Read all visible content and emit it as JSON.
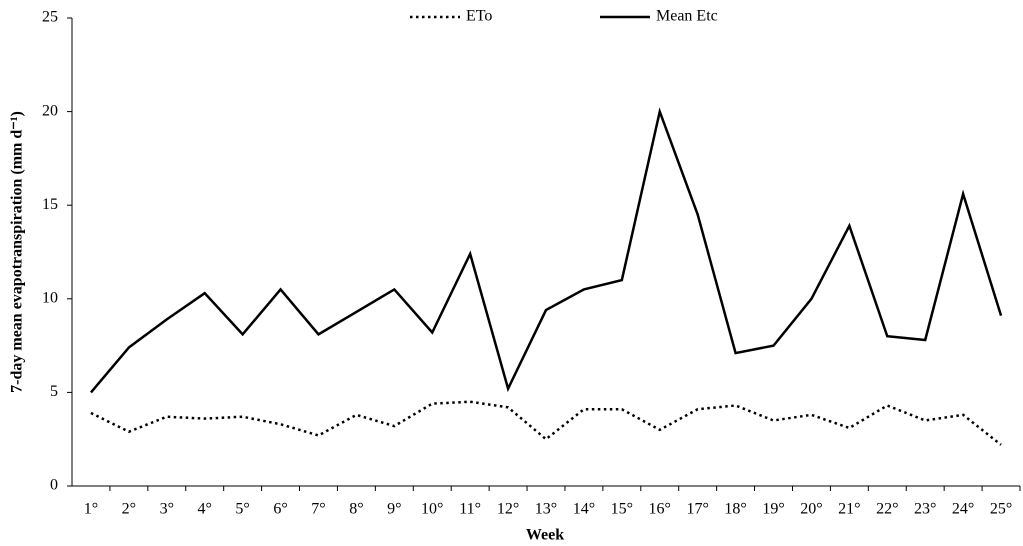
{
  "chart_data": {
    "type": "line",
    "x_label": "Week",
    "y_label": "7-day mean evapotranspiration (mm d⁻¹)",
    "categories": [
      "1°",
      "2°",
      "3°",
      "4°",
      "5°",
      "6°",
      "7°",
      "8°",
      "9°",
      "10°",
      "11°",
      "12°",
      "13°",
      "14°",
      "15°",
      "16°",
      "17°",
      "18°",
      "19°",
      "20°",
      "21°",
      "22°",
      "23°",
      "24°",
      "25°"
    ],
    "series": [
      {
        "name": "ETo",
        "color": "#000000",
        "dash": "dotted",
        "values": [
          3.9,
          2.9,
          3.7,
          3.6,
          3.7,
          3.3,
          2.7,
          3.8,
          3.2,
          4.4,
          4.5,
          4.2,
          2.5,
          4.1,
          4.1,
          3.0,
          4.1,
          4.3,
          3.5,
          3.8,
          3.1,
          4.3,
          3.5,
          3.8,
          2.2
        ]
      },
      {
        "name": "Mean Etc",
        "color": "#000000",
        "dash": "solid",
        "values": [
          5.0,
          7.4,
          8.9,
          10.3,
          8.1,
          10.5,
          8.1,
          9.3,
          10.5,
          8.2,
          12.4,
          5.2,
          9.4,
          10.5,
          11.0,
          20.0,
          14.5,
          7.1,
          7.5,
          10.0,
          13.9,
          8.0,
          7.8,
          15.6,
          9.1
        ]
      }
    ],
    "ylim": [
      0,
      25
    ],
    "yticks": [
      0,
      5,
      10,
      15,
      20,
      25
    ],
    "grid": false,
    "legend": "top"
  }
}
